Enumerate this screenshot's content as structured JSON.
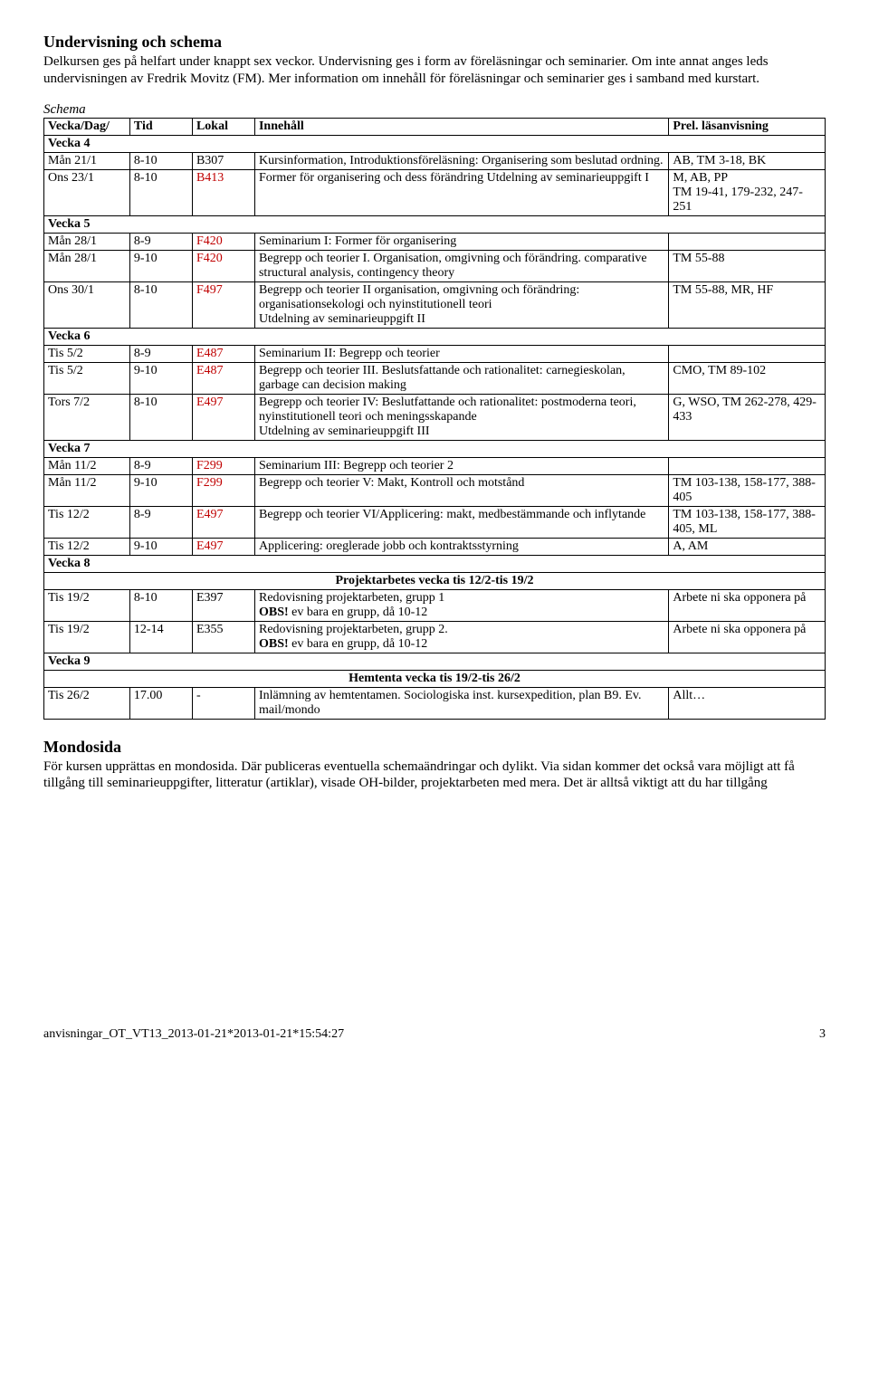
{
  "heading1": "Undervisning och schema",
  "intro": "Delkursen ges på helfart under knappt sex veckor. Undervisning ges i form av föreläsningar och seminarier. Om inte annat anges leds undervisningen av Fredrik Movitz (FM). Mer information om innehåll för föreläsningar och seminarier ges i samband med kurstart.",
  "schemaLabel": "Schema",
  "headers": {
    "c1": "Vecka/Dag/",
    "c2": "Tid",
    "c3": "Lokal",
    "c4": "Innehåll",
    "c5": "Prel. läsanvisning"
  },
  "rows": [
    {
      "type": "week",
      "label": "Vecka 4"
    },
    {
      "type": "entry",
      "date": "Mån 21/1",
      "tid": "8-10",
      "lokal": "B307",
      "lokalRed": false,
      "inneh": "Kursinformation, Introduktionsföreläsning: Organisering som beslutad ordning.",
      "prel": "AB, TM 3-18, BK"
    },
    {
      "type": "entry",
      "date": "Ons 23/1",
      "tid": "8-10",
      "lokal": "B413",
      "lokalRed": true,
      "inneh": "Former för organisering och dess förändring Utdelning av seminarieuppgift I",
      "prel": "M, AB, PP\nTM 19-41, 179-232, 247-251"
    },
    {
      "type": "week",
      "label": "Vecka 5"
    },
    {
      "type": "entry",
      "date": "Mån 28/1",
      "tid": "8-9",
      "lokal": "F420",
      "lokalRed": true,
      "inneh": "Seminarium I: Former för organisering",
      "prel": ""
    },
    {
      "type": "entry",
      "date": "Mån 28/1",
      "tid": "9-10",
      "lokal": "F420",
      "lokalRed": true,
      "inneh": "Begrepp och teorier I. Organisation, omgivning och förändring. comparative structural analysis, contingency theory",
      "prel": "TM 55-88"
    },
    {
      "type": "entry",
      "date": "Ons 30/1",
      "tid": "8-10",
      "lokal": "F497",
      "lokalRed": true,
      "inneh": "Begrepp och teorier II organisation, omgivning och förändring: organisationsekologi och nyinstitutionell teori\nUtdelning av seminarieuppgift II",
      "prel": "TM 55-88, MR, HF"
    },
    {
      "type": "week",
      "label": "Vecka 6"
    },
    {
      "type": "entry",
      "date": "Tis 5/2",
      "tid": "8-9",
      "lokal": "E487",
      "lokalRed": true,
      "inneh": "Seminarium II: Begrepp och teorier",
      "prel": ""
    },
    {
      "type": "entry",
      "date": "Tis 5/2",
      "tid": "9-10",
      "lokal": "E487",
      "lokalRed": true,
      "inneh": "Begrepp och teorier III. Beslutsfattande och rationalitet: carnegieskolan, garbage can decision making",
      "prel": "CMO, TM 89-102"
    },
    {
      "type": "entry",
      "date": "Tors 7/2",
      "tid": "8-10",
      "lokal": "E497",
      "lokalRed": true,
      "inneh": "Begrepp och teorier IV: Beslutfattande och rationalitet: postmoderna teori, nyinstitutionell teori och meningsskapande\nUtdelning av seminarieuppgift III",
      "prel": "G, WSO, TM 262-278, 429-433"
    },
    {
      "type": "week",
      "label": "Vecka 7"
    },
    {
      "type": "entry",
      "date": "Mån 11/2",
      "tid": "8-9",
      "lokal": "F299",
      "lokalRed": true,
      "inneh": "Seminarium III: Begrepp och teorier 2",
      "prel": ""
    },
    {
      "type": "entry",
      "date": "Mån 11/2",
      "tid": "9-10",
      "lokal": "F299",
      "lokalRed": true,
      "inneh": "Begrepp och teorier V: Makt, Kontroll och motstånd",
      "prel": "TM 103-138, 158-177, 388-405"
    },
    {
      "type": "entry",
      "date": "Tis 12/2",
      "tid": "8-9",
      "lokal": "E497",
      "lokalRed": true,
      "inneh": "Begrepp och teorier VI/Applicering: makt, medbestämmande och inflytande",
      "prel": "TM 103-138, 158-177, 388-405, ML"
    },
    {
      "type": "entry",
      "date": "Tis 12/2",
      "tid": "9-10",
      "lokal": "E497",
      "lokalRed": true,
      "inneh": "Applicering: oreglerade jobb och kontraktsstyrning",
      "prel": "A, AM"
    },
    {
      "type": "week",
      "label": "Vecka 8"
    },
    {
      "type": "center",
      "label": "Projektarbetes vecka tis 12/2-tis 19/2"
    },
    {
      "type": "entry",
      "date": "Tis 19/2",
      "tid": "8-10",
      "lokal": "E397",
      "lokalRed": false,
      "inneh": "Redovisning projektarbeten, grupp 1\n<b>OBS!</b> ev bara en grupp, då 10-12",
      "prel": "Arbete ni ska opponera på"
    },
    {
      "type": "entry",
      "date": "Tis 19/2",
      "tid": "12-14",
      "lokal": "E355",
      "lokalRed": false,
      "inneh": "Redovisning projektarbeten, grupp 2.\n<b>OBS!</b> ev bara en grupp, då 10-12",
      "prel": "Arbete ni ska opponera på"
    },
    {
      "type": "week",
      "label": "Vecka 9"
    },
    {
      "type": "center",
      "label": "Hemtenta vecka tis 19/2-tis 26/2"
    },
    {
      "type": "entry",
      "date": "Tis 26/2",
      "tid": "17.00",
      "lokal": "-",
      "lokalRed": false,
      "inneh": "Inlämning av hemtentamen. Sociologiska inst. kursexpedition, plan B9. Ev. mail/mondo",
      "prel": "Allt…"
    }
  ],
  "heading2": "Mondosida",
  "outro": "För kursen upprättas en mondosida. Där publiceras eventuella schemaändringar och dylikt. Via sidan kommer det också vara möjligt att få tillgång till seminarieuppgifter, litteratur (artiklar), visade OH-bilder, projektarbeten med mera. Det är alltså viktigt att du har tillgång",
  "footerLeft": "anvisningar_OT_VT13_2013-01-21*2013-01-21*15:54:27",
  "footerRight": "3"
}
